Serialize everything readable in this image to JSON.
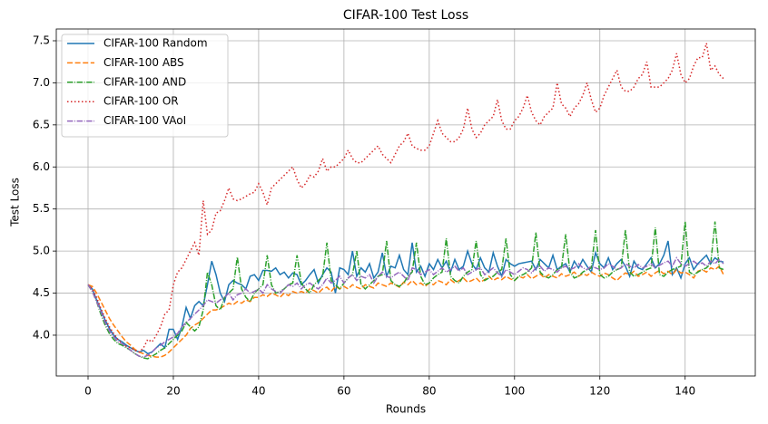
{
  "chart_data": {
    "type": "line",
    "title": "CIFAR-100 Test Loss",
    "xlabel": "Rounds",
    "ylabel": "Test Loss",
    "x": [
      0,
      1,
      2,
      3,
      4,
      5,
      6,
      7,
      8,
      9,
      10,
      11,
      12,
      13,
      14,
      15,
      16,
      17,
      18,
      19,
      20,
      21,
      22,
      23,
      24,
      25,
      26,
      27,
      28,
      29,
      30,
      31,
      32,
      33,
      34,
      35,
      36,
      37,
      38,
      39,
      40,
      41,
      42,
      43,
      44,
      45,
      46,
      47,
      48,
      49,
      50,
      51,
      52,
      53,
      54,
      55,
      56,
      57,
      58,
      59,
      60,
      61,
      62,
      63,
      64,
      65,
      66,
      67,
      68,
      69,
      70,
      71,
      72,
      73,
      74,
      75,
      76,
      77,
      78,
      79,
      80,
      81,
      82,
      83,
      84,
      85,
      86,
      87,
      88,
      89,
      90,
      91,
      92,
      93,
      94,
      95,
      96,
      97,
      98,
      99,
      100,
      101,
      102,
      103,
      104,
      105,
      106,
      107,
      108,
      109,
      110,
      111,
      112,
      113,
      114,
      115,
      116,
      117,
      118,
      119,
      120,
      121,
      122,
      123,
      124,
      125,
      126,
      127,
      128,
      129,
      130,
      131,
      132,
      133,
      134,
      135,
      136,
      137,
      138,
      139,
      140,
      141,
      142,
      143,
      144,
      145,
      146,
      147,
      148,
      149
    ],
    "xlim": [
      -7.45,
      156.45
    ],
    "xticks": [
      0,
      20,
      40,
      60,
      80,
      100,
      120,
      140
    ],
    "ylim": [
      3.515,
      7.64
    ],
    "yticks": [
      {
        "value": 4,
        "label": "4.0"
      },
      4.5,
      {
        "value": 5,
        "label": "5.0"
      },
      5.5,
      {
        "value": 6,
        "label": "6.0"
      },
      6.5,
      {
        "value": 7,
        "label": "7.0"
      },
      7.5
    ],
    "grid": true,
    "legend": "upper left",
    "series": [
      {
        "name": "CIFAR-100 Random",
        "color": "#1f77b4",
        "linestyle": "solid",
        "values": [
          4.6,
          4.55,
          4.42,
          4.3,
          4.18,
          4.08,
          4.0,
          3.95,
          3.92,
          3.88,
          3.85,
          3.82,
          3.8,
          3.82,
          3.78,
          3.8,
          3.85,
          3.9,
          3.85,
          4.07,
          4.07,
          3.95,
          4.1,
          4.33,
          4.2,
          4.35,
          4.4,
          4.35,
          4.6,
          4.88,
          4.72,
          4.5,
          4.4,
          4.6,
          4.65,
          4.62,
          4.6,
          4.55,
          4.7,
          4.72,
          4.65,
          4.77,
          4.77,
          4.76,
          4.8,
          4.72,
          4.75,
          4.68,
          4.74,
          4.72,
          4.6,
          4.65,
          4.72,
          4.78,
          4.62,
          4.72,
          4.8,
          4.75,
          4.5,
          4.8,
          4.78,
          4.72,
          5.0,
          4.7,
          4.8,
          4.75,
          4.85,
          4.68,
          4.75,
          4.98,
          4.7,
          4.82,
          4.8,
          4.95,
          4.78,
          4.72,
          5.1,
          4.75,
          4.82,
          4.7,
          4.85,
          4.78,
          4.9,
          4.8,
          4.88,
          4.75,
          4.9,
          4.78,
          4.82,
          5.0,
          4.85,
          4.78,
          4.92,
          4.8,
          4.75,
          4.98,
          4.82,
          4.7,
          4.9,
          4.85,
          4.82,
          4.85,
          4.86,
          4.87,
          4.88,
          4.78,
          4.9,
          4.85,
          4.8,
          4.95,
          4.78,
          4.82,
          4.85,
          4.75,
          4.88,
          4.8,
          4.9,
          4.82,
          4.75,
          4.98,
          4.85,
          4.8,
          4.92,
          4.78,
          4.85,
          4.9,
          4.82,
          4.7,
          4.88,
          4.8,
          4.78,
          4.85,
          4.92,
          4.8,
          4.85,
          4.95,
          5.12,
          4.72,
          4.8,
          4.68,
          4.85,
          4.92,
          4.78,
          4.85,
          4.9,
          4.95,
          4.85,
          4.92,
          4.88,
          4.87
        ]
      },
      {
        "name": "CIFAR-100 ABS",
        "color": "#ff7f0e",
        "linestyle": "dashed",
        "values": [
          4.6,
          4.58,
          4.5,
          4.4,
          4.3,
          4.2,
          4.12,
          4.05,
          3.98,
          3.92,
          3.88,
          3.83,
          3.8,
          3.78,
          3.76,
          3.75,
          3.74,
          3.74,
          3.76,
          3.8,
          3.85,
          3.9,
          3.95,
          4.0,
          4.08,
          4.12,
          4.15,
          4.2,
          4.25,
          4.3,
          4.3,
          4.32,
          4.35,
          4.38,
          4.36,
          4.4,
          4.38,
          4.42,
          4.4,
          4.45,
          4.45,
          4.48,
          4.46,
          4.5,
          4.48,
          4.45,
          4.5,
          4.47,
          4.52,
          4.5,
          4.52,
          4.5,
          4.55,
          4.53,
          4.5,
          4.55,
          4.57,
          4.52,
          4.58,
          4.55,
          4.58,
          4.55,
          4.6,
          4.57,
          4.55,
          4.6,
          4.58,
          4.56,
          4.62,
          4.6,
          4.58,
          4.62,
          4.6,
          4.57,
          4.63,
          4.6,
          4.65,
          4.6,
          4.62,
          4.58,
          4.62,
          4.6,
          4.65,
          4.63,
          4.6,
          4.66,
          4.62,
          4.65,
          4.68,
          4.63,
          4.65,
          4.68,
          4.63,
          4.66,
          4.7,
          4.65,
          4.68,
          4.66,
          4.7,
          4.67,
          4.65,
          4.7,
          4.68,
          4.72,
          4.67,
          4.7,
          4.73,
          4.68,
          4.72,
          4.7,
          4.68,
          4.73,
          4.7,
          4.72,
          4.75,
          4.7,
          4.73,
          4.71,
          4.75,
          4.72,
          4.7,
          4.74,
          4.72,
          4.68,
          4.65,
          4.7,
          4.74,
          4.72,
          4.76,
          4.7,
          4.72,
          4.75,
          4.7,
          4.74,
          4.77,
          4.73,
          4.76,
          4.72,
          4.78,
          4.74,
          4.75,
          4.72,
          4.68,
          4.76,
          4.78,
          4.75,
          4.8,
          4.78,
          4.82,
          4.72
        ]
      },
      {
        "name": "CIFAR-100 AND",
        "color": "#2ca02c",
        "linestyle": "dashdot",
        "values": [
          4.6,
          4.52,
          4.4,
          4.25,
          4.12,
          4.02,
          3.95,
          3.9,
          3.88,
          3.85,
          3.82,
          3.78,
          3.75,
          3.73,
          3.72,
          3.75,
          3.78,
          3.82,
          3.85,
          3.9,
          3.95,
          4.0,
          4.05,
          4.15,
          4.1,
          4.05,
          4.1,
          4.3,
          4.75,
          4.6,
          4.35,
          4.3,
          4.45,
          4.5,
          4.55,
          4.93,
          4.55,
          4.45,
          4.4,
          4.5,
          4.55,
          4.6,
          4.95,
          4.6,
          4.5,
          4.52,
          4.55,
          4.6,
          4.62,
          4.95,
          4.62,
          4.55,
          4.5,
          4.6,
          4.65,
          4.7,
          5.1,
          4.65,
          4.6,
          4.55,
          4.62,
          4.68,
          4.72,
          5.0,
          4.6,
          4.55,
          4.6,
          4.65,
          4.7,
          4.72,
          5.12,
          4.65,
          4.6,
          4.58,
          4.62,
          4.7,
          4.75,
          5.1,
          4.7,
          4.6,
          4.62,
          4.68,
          4.72,
          4.75,
          5.15,
          4.7,
          4.65,
          4.62,
          4.7,
          4.75,
          4.78,
          5.12,
          4.72,
          4.65,
          4.68,
          4.7,
          4.75,
          4.78,
          5.15,
          4.72,
          4.65,
          4.7,
          4.72,
          4.75,
          4.8,
          5.22,
          4.75,
          4.7,
          4.68,
          4.72,
          4.78,
          4.8,
          5.2,
          4.75,
          4.68,
          4.7,
          4.75,
          4.78,
          4.8,
          5.25,
          4.72,
          4.68,
          4.7,
          4.75,
          4.78,
          4.8,
          5.25,
          4.75,
          4.7,
          4.72,
          4.75,
          4.78,
          4.8,
          5.28,
          4.72,
          4.7,
          4.75,
          4.78,
          4.8,
          4.82,
          5.35,
          4.75,
          4.72,
          4.75,
          4.78,
          4.8,
          4.85,
          5.35,
          4.8,
          4.78
        ]
      },
      {
        "name": "CIFAR-100 OR",
        "color": "#d62728",
        "linestyle": "dotted",
        "values": [
          4.6,
          4.55,
          4.45,
          4.32,
          4.2,
          4.1,
          4.02,
          3.95,
          3.9,
          3.87,
          3.85,
          3.82,
          3.8,
          3.85,
          3.95,
          3.92,
          4.0,
          4.1,
          4.25,
          4.3,
          4.6,
          4.75,
          4.8,
          4.9,
          5.0,
          5.1,
          4.95,
          5.6,
          5.2,
          5.25,
          5.45,
          5.48,
          5.6,
          5.75,
          5.62,
          5.6,
          5.62,
          5.65,
          5.68,
          5.7,
          5.8,
          5.7,
          5.55,
          5.75,
          5.8,
          5.85,
          5.9,
          5.95,
          6.0,
          5.85,
          5.75,
          5.8,
          5.9,
          5.88,
          5.95,
          6.1,
          5.95,
          6.0,
          6.0,
          6.05,
          6.1,
          6.2,
          6.1,
          6.05,
          6.05,
          6.1,
          6.15,
          6.2,
          6.25,
          6.15,
          6.1,
          6.05,
          6.15,
          6.25,
          6.3,
          6.4,
          6.25,
          6.22,
          6.2,
          6.2,
          6.25,
          6.4,
          6.55,
          6.4,
          6.35,
          6.3,
          6.3,
          6.35,
          6.45,
          6.7,
          6.45,
          6.35,
          6.4,
          6.5,
          6.55,
          6.6,
          6.8,
          6.55,
          6.45,
          6.45,
          6.55,
          6.6,
          6.7,
          6.85,
          6.65,
          6.55,
          6.5,
          6.6,
          6.65,
          6.7,
          7.0,
          6.75,
          6.7,
          6.6,
          6.7,
          6.75,
          6.85,
          7.0,
          6.8,
          6.65,
          6.7,
          6.85,
          6.95,
          7.05,
          7.15,
          6.95,
          6.9,
          6.9,
          6.95,
          7.05,
          7.1,
          7.25,
          6.95,
          6.95,
          6.95,
          7.0,
          7.05,
          7.15,
          7.35,
          7.1,
          7.0,
          7.05,
          7.2,
          7.3,
          7.3,
          7.47,
          7.15,
          7.2,
          7.1,
          7.05
        ]
      },
      {
        "name": "CIFAR-100 VAoI",
        "color": "#9467bd",
        "linestyle": "dashdot",
        "values": [
          4.6,
          4.52,
          4.4,
          4.28,
          4.15,
          4.05,
          3.98,
          3.92,
          3.9,
          3.86,
          3.82,
          3.78,
          3.75,
          3.74,
          3.76,
          3.8,
          3.85,
          3.88,
          3.92,
          3.95,
          3.98,
          4.02,
          4.1,
          4.15,
          4.2,
          4.25,
          4.3,
          4.35,
          4.42,
          4.4,
          4.38,
          4.42,
          4.45,
          4.5,
          4.42,
          4.48,
          4.5,
          4.55,
          4.5,
          4.52,
          4.55,
          4.5,
          4.6,
          4.55,
          4.52,
          4.5,
          4.55,
          4.6,
          4.58,
          4.62,
          4.55,
          4.6,
          4.62,
          4.58,
          4.55,
          4.6,
          4.68,
          4.62,
          4.65,
          4.7,
          4.62,
          4.68,
          4.72,
          4.65,
          4.7,
          4.68,
          4.72,
          4.62,
          4.7,
          4.75,
          4.7,
          4.68,
          4.72,
          4.75,
          4.7,
          4.65,
          4.8,
          4.78,
          4.72,
          4.75,
          4.78,
          4.72,
          4.76,
          4.8,
          4.75,
          4.78,
          4.82,
          4.76,
          4.8,
          4.72,
          4.75,
          4.78,
          4.8,
          4.72,
          4.76,
          4.8,
          4.74,
          4.7,
          4.78,
          4.75,
          4.72,
          4.76,
          4.8,
          4.78,
          4.74,
          4.8,
          4.82,
          4.76,
          4.8,
          4.78,
          4.75,
          4.8,
          4.82,
          4.78,
          4.8,
          4.85,
          4.8,
          4.78,
          4.82,
          4.8,
          4.78,
          4.8,
          4.85,
          4.82,
          4.78,
          4.8,
          4.85,
          4.82,
          4.8,
          4.84,
          4.8,
          4.82,
          4.85,
          4.8,
          4.83,
          4.86,
          4.88,
          4.82,
          4.92,
          4.85,
          4.82,
          4.85,
          4.88,
          4.84,
          4.86,
          4.82,
          4.88,
          4.85,
          4.9,
          4.85
        ]
      }
    ]
  }
}
